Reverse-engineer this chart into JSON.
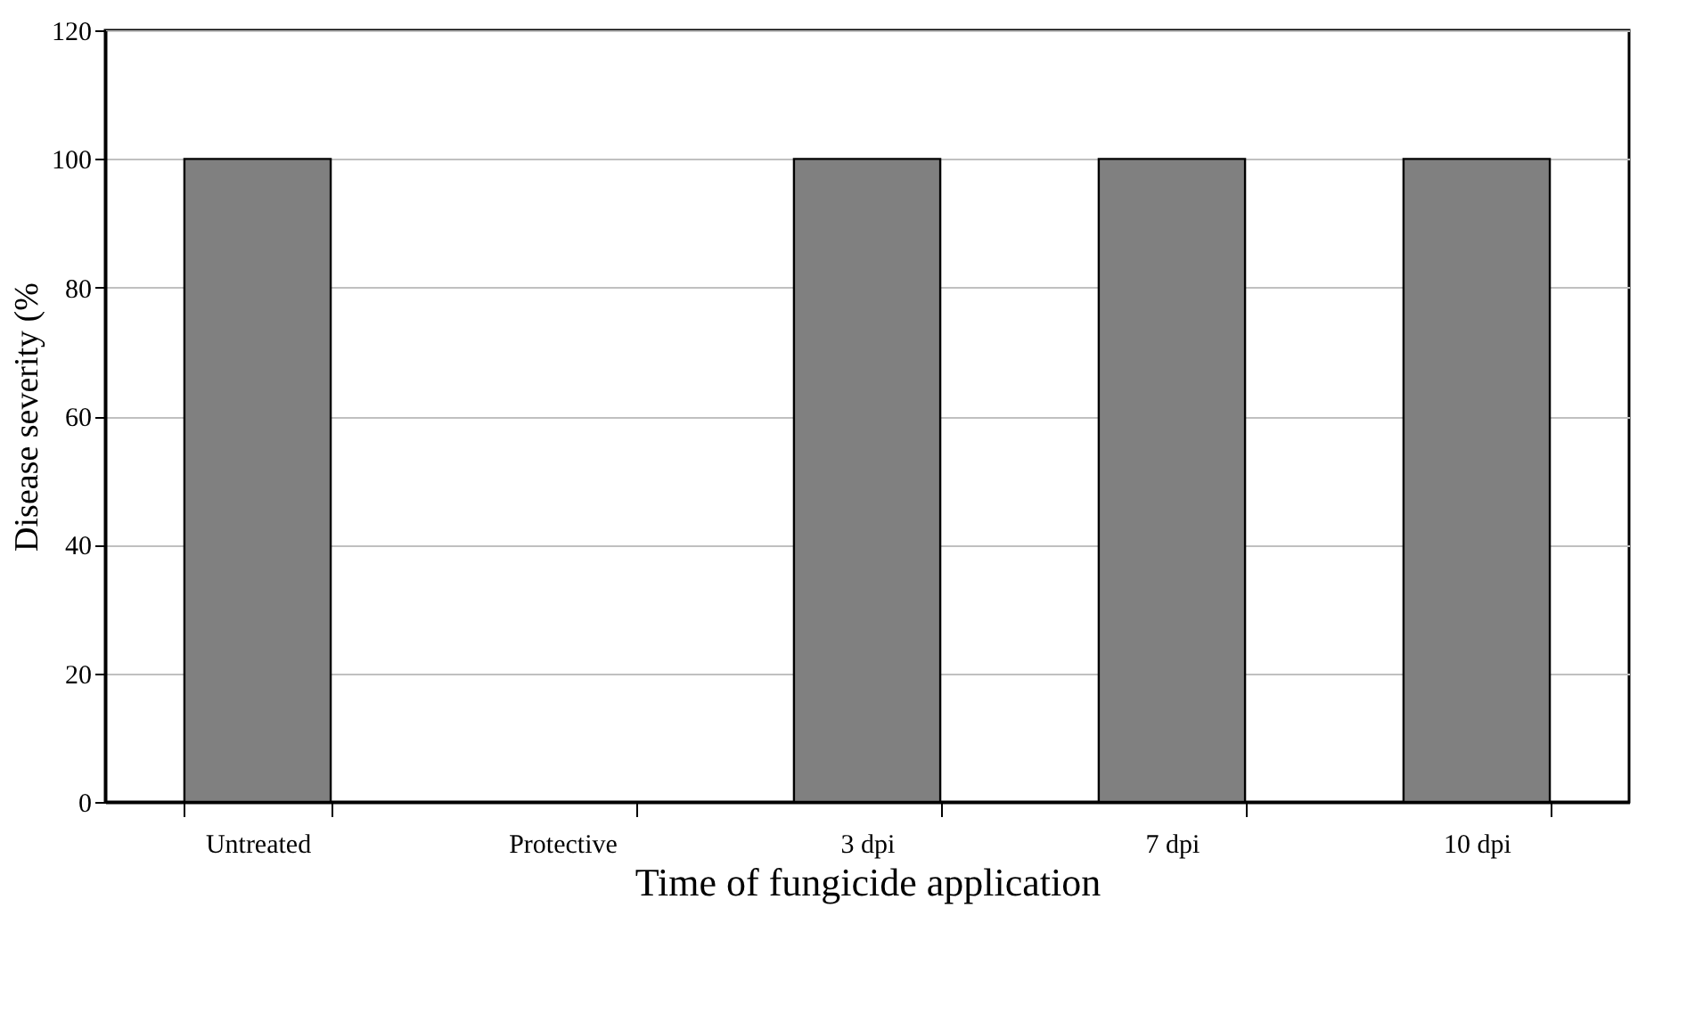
{
  "chart_data": {
    "type": "bar",
    "xlabel": "Time of fungicide application",
    "ylabel": "Disease severity (%",
    "categories": [
      "Untreated",
      "Protective",
      "3 dpi",
      "7 dpi",
      "10 dpi"
    ],
    "values": [
      100,
      0,
      100,
      100,
      100
    ],
    "color": "#808080",
    "ylim": [
      0,
      120
    ],
    "yticks": [
      0,
      20,
      40,
      60,
      80,
      100,
      120
    ],
    "grid": "y",
    "legend": false
  }
}
